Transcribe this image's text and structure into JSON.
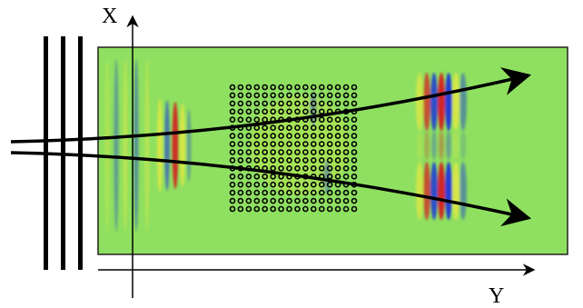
{
  "labels": {
    "x_axis": "X",
    "y_axis": "Y"
  },
  "field": {
    "background_color": "#8fe060",
    "positive_color": "#d42020",
    "negative_color": "#1a35d8",
    "light_color": "#e8e840"
  },
  "lattice": {
    "rows": 16,
    "cols": 16,
    "hole_color": "#000000"
  },
  "beam_color": "#000000",
  "grating_lines": 3
}
